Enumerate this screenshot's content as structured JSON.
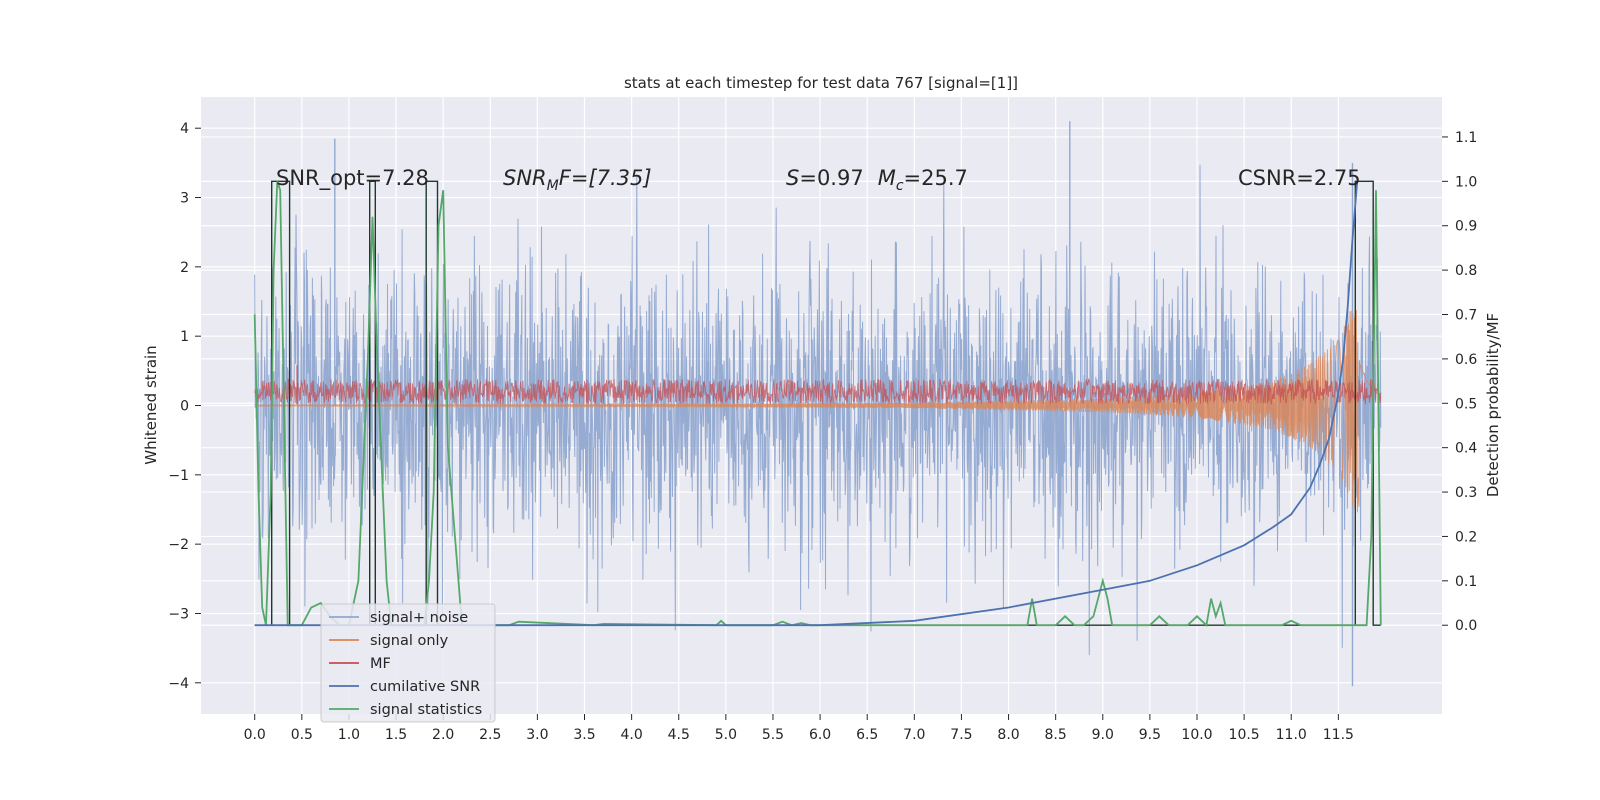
{
  "chart_data": {
    "type": "line",
    "title": "stats at each timestep for test data 767 [signal=[1]]",
    "ylabel": "Whitened strain",
    "ylabel_right": "Detection probability/MF",
    "xlim": [
      -0.57,
      12.6
    ],
    "ylim": [
      -4.45,
      4.45
    ],
    "ylim_right": [
      -0.2,
      1.19
    ],
    "grid": true,
    "legend_position": "lower-left",
    "x_ticks": [
      "0.0",
      "0.5",
      "1.0",
      "1.5",
      "2.0",
      "2.5",
      "3.0",
      "3.5",
      "4.0",
      "4.5",
      "5.0",
      "5.5",
      "6.0",
      "6.5",
      "7.0",
      "7.5",
      "8.0",
      "8.5",
      "9.0",
      "9.5",
      "10.0",
      "10.5",
      "11.0",
      "11.5"
    ],
    "y_ticks": [
      "4",
      "3",
      "2",
      "1",
      "0",
      "−1",
      "−2",
      "−3",
      "−4"
    ],
    "y_tick_values": [
      4,
      3,
      2,
      1,
      0,
      -1,
      -2,
      -3,
      -4
    ],
    "y_ticks_right": [
      "1.1",
      "1.0",
      "0.9",
      "0.8",
      "0.7",
      "0.6",
      "0.5",
      "0.4",
      "0.3",
      "0.2",
      "0.1",
      "0.0"
    ],
    "y_tick_values_right": [
      1.1,
      1.0,
      0.9,
      0.8,
      0.7,
      0.6,
      0.5,
      0.4,
      0.3,
      0.2,
      0.1,
      0.0
    ],
    "annotations": {
      "snr_opt": "SNR_opt=7.28",
      "snr_mf_base": "SNR",
      "snr_mf_sub": "M",
      "snr_mf_rest": "F=[7.35]",
      "s_label": "S",
      "s_value": "=0.97",
      "mc_label": "M",
      "mc_sub": "c",
      "mc_value": "=25.7",
      "csnr": "CSNR=2.75"
    },
    "series": [
      {
        "name": "signal+ noise",
        "axis": "left",
        "style": "dense-noise",
        "x_range": [
          0.0,
          11.95
        ],
        "amplitude_sigma": 1.0,
        "peak_values": [
          3.85,
          4.1,
          3.5
        ],
        "peak_x": [
          0.85,
          8.65,
          11.65
        ],
        "min_value": -4.05,
        "min_x": 11.65
      },
      {
        "name": "signal only",
        "axis": "left",
        "style": "chirp",
        "x_range": [
          0.0,
          11.95
        ],
        "envelope": {
          "x": [
            0.0,
            4.0,
            7.0,
            9.0,
            10.0,
            10.8,
            11.2,
            11.5,
            11.65,
            11.72,
            11.8,
            11.95
          ],
          "y": [
            0.01,
            0.02,
            0.04,
            0.1,
            0.18,
            0.35,
            0.6,
            0.95,
            1.45,
            1.6,
            0.9,
            0.3
          ]
        }
      },
      {
        "name": "MF",
        "axis": "left",
        "style": "band",
        "x_range": [
          0.0,
          11.95
        ],
        "band": [
          0.02,
          0.38
        ],
        "peak_values": [
          0.58
        ],
        "peak_x": [
          0.45
        ]
      },
      {
        "name": "cumilative SNR",
        "axis": "right",
        "x": [
          0.0,
          6.0,
          7.0,
          8.0,
          9.0,
          9.5,
          10.0,
          10.5,
          10.8,
          11.0,
          11.2,
          11.3,
          11.4,
          11.5,
          11.55,
          11.6,
          11.65,
          11.7
        ],
        "y": [
          0.0,
          0.0,
          0.01,
          0.04,
          0.08,
          0.1,
          0.135,
          0.18,
          0.22,
          0.25,
          0.31,
          0.36,
          0.42,
          0.52,
          0.6,
          0.72,
          0.87,
          1.0
        ]
      },
      {
        "name": "signal statistics",
        "axis": "right",
        "x": [
          0.0,
          0.04,
          0.08,
          0.12,
          0.17,
          0.2,
          0.24,
          0.27,
          0.31,
          0.35,
          0.4,
          0.5,
          0.6,
          0.7,
          0.8,
          0.9,
          1.0,
          1.1,
          1.2,
          1.25,
          1.3,
          1.35,
          1.4,
          1.45,
          1.5,
          1.6,
          1.7,
          1.8,
          1.85,
          1.9,
          1.95,
          2.0,
          2.05,
          2.2,
          2.7,
          2.8,
          3.6,
          3.7,
          4.9,
          4.95,
          5.0,
          5.5,
          5.6,
          5.7,
          5.8,
          5.9,
          6.0,
          8.2,
          8.25,
          8.3,
          8.5,
          8.6,
          8.7,
          8.8,
          8.9,
          9.0,
          9.05,
          9.1,
          9.2,
          9.5,
          9.6,
          9.7,
          9.8,
          9.9,
          10.0,
          10.1,
          10.15,
          10.2,
          10.25,
          10.3,
          10.4,
          10.9,
          11.0,
          11.1,
          11.5,
          11.8,
          11.85,
          11.9,
          11.95
        ],
        "y": [
          0.7,
          0.3,
          0.04,
          0.0,
          0.3,
          0.8,
          1.0,
          0.98,
          0.5,
          0.0,
          0.0,
          0.0,
          0.04,
          0.05,
          0.02,
          0.0,
          0.0,
          0.1,
          0.6,
          0.92,
          0.6,
          0.35,
          0.1,
          0.0,
          0.0,
          0.0,
          0.0,
          0.0,
          0.1,
          0.3,
          0.9,
          0.98,
          0.4,
          0.0,
          0.0,
          0.008,
          0.0,
          0.003,
          0.0,
          0.01,
          0.0,
          0.0,
          0.008,
          0.0,
          0.005,
          0.0,
          0.0,
          0.0,
          0.06,
          0.0,
          0.0,
          0.02,
          0.0,
          0.0,
          0.02,
          0.1,
          0.06,
          0.0,
          0.0,
          0.0,
          0.02,
          0.0,
          0.0,
          0.0,
          0.02,
          0.0,
          0.06,
          0.02,
          0.05,
          0.0,
          0.0,
          0.0,
          0.01,
          0.0,
          0.0,
          0.0,
          0.2,
          0.98,
          0.0
        ]
      },
      {
        "name": "",
        "axis": "right",
        "style": "step",
        "x": [
          0.0,
          0.18,
          0.18,
          0.37,
          0.37,
          1.22,
          1.22,
          1.28,
          1.28,
          1.82,
          1.82,
          1.94,
          1.94,
          11.68,
          11.68,
          11.87,
          11.87,
          11.95
        ],
        "y": [
          0.0,
          0.0,
          1.0,
          1.0,
          0.0,
          0.0,
          1.0,
          1.0,
          0.0,
          0.0,
          1.0,
          1.0,
          0.0,
          0.0,
          1.0,
          1.0,
          0.0,
          0.0
        ]
      }
    ],
    "colors": {
      "background": "#eaeaf2",
      "grid": "#ffffff",
      "signal_noise": "#91a8d0",
      "signal_only": "#dd8452",
      "mf": "#c44e52",
      "cumulative_snr": "#4c72b0",
      "signal_statistics": "#55a868",
      "step": "#1f3a2a"
    }
  }
}
